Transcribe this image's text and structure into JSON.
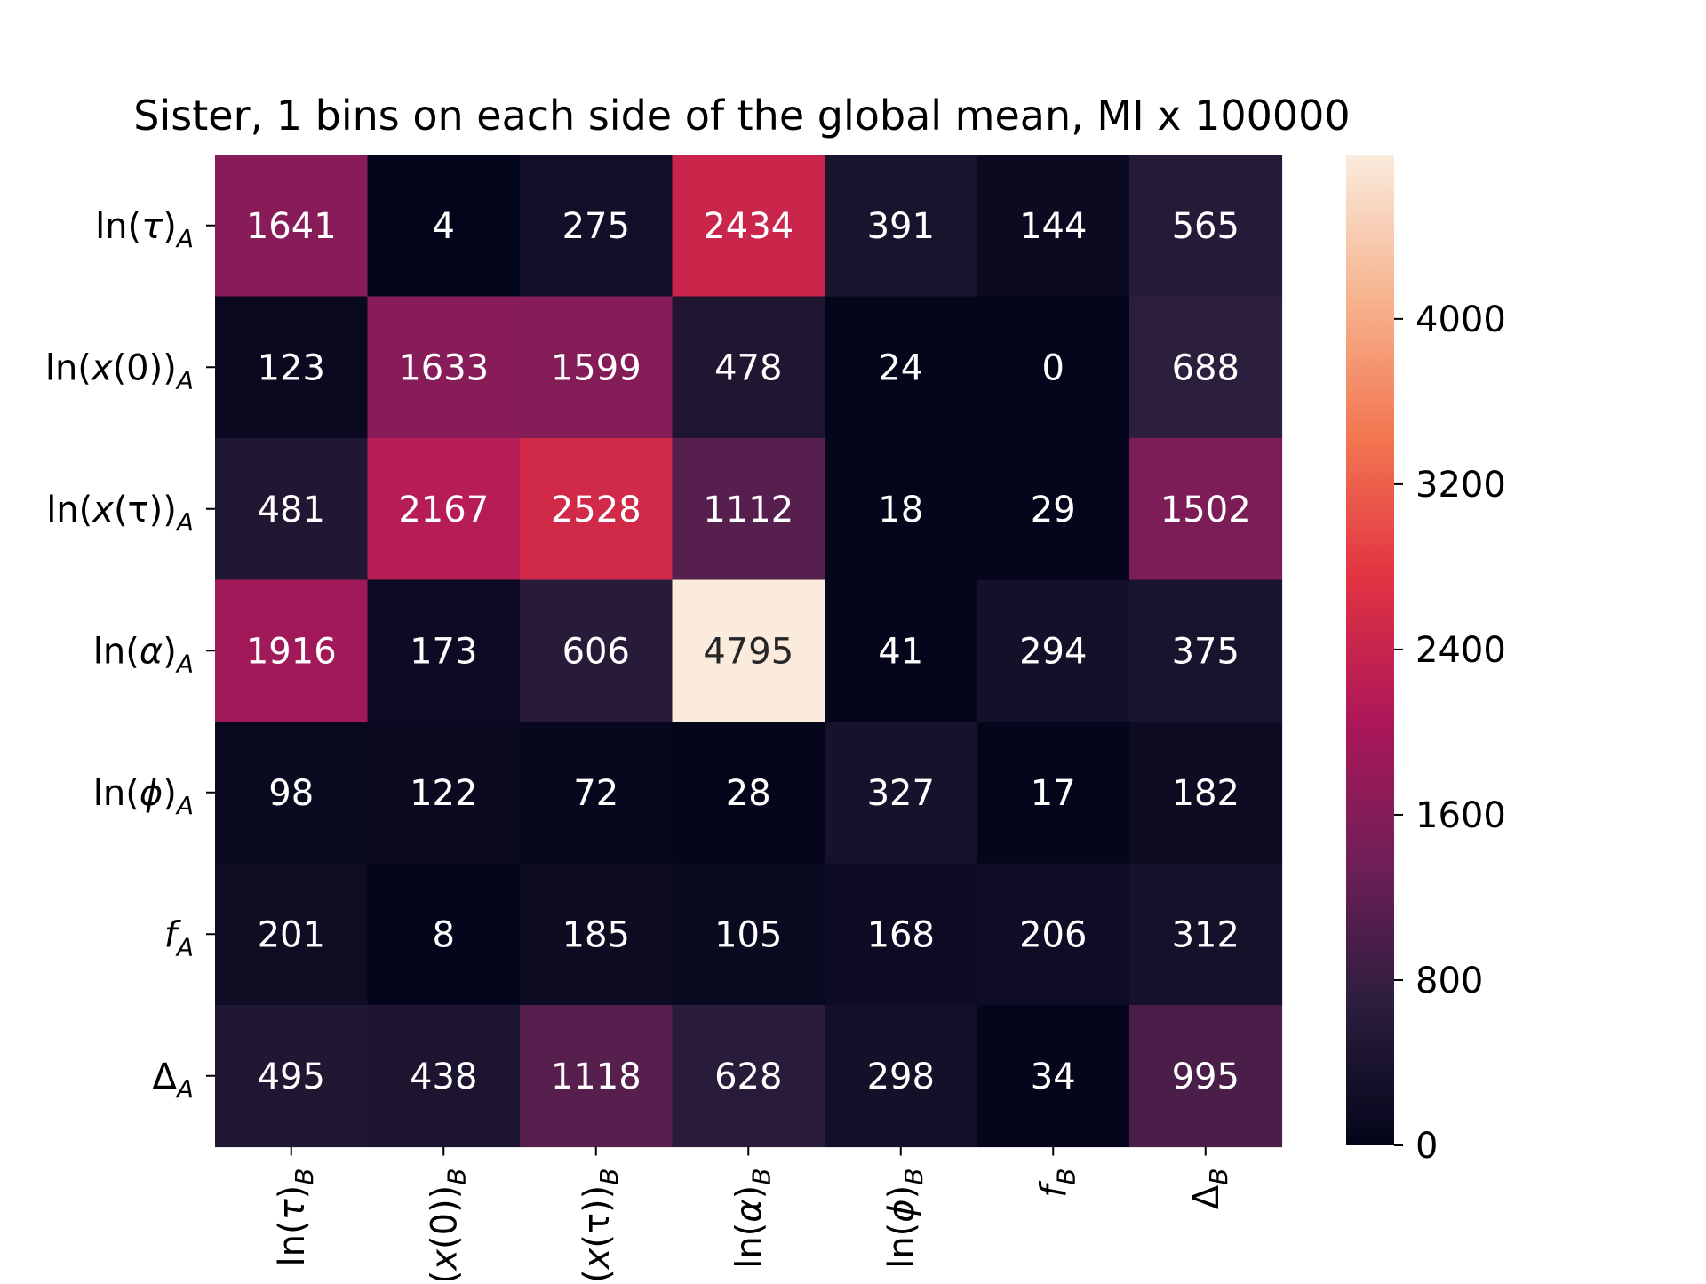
{
  "chart_data": {
    "type": "heatmap",
    "title": "Sister, 1 bins on each side of the global mean, MI x 100000",
    "row_labels": [
      {
        "base": "ln(",
        "sym": "τ",
        "close": ")",
        "sub": "A"
      },
      {
        "base": "ln(",
        "sym": "x",
        "close": "(0))",
        "sub": "A"
      },
      {
        "base": "ln(",
        "sym": "x",
        "close": "(τ))",
        "sub": "A"
      },
      {
        "base": "ln(",
        "sym": "α",
        "close": ")",
        "sub": "A"
      },
      {
        "base": "ln(",
        "sym": "ϕ",
        "close": ")",
        "sub": "A"
      },
      {
        "base": "",
        "sym": "f",
        "close": "",
        "sub": "A"
      },
      {
        "base": "Δ",
        "sym": "",
        "close": "",
        "sub": "A"
      }
    ],
    "col_labels": [
      {
        "base": "ln(",
        "sym": "τ",
        "close": ")",
        "sub": "B"
      },
      {
        "base": "ln(",
        "sym": "x",
        "close": "(0))",
        "sub": "B"
      },
      {
        "base": "ln(",
        "sym": "x",
        "close": "(τ))",
        "sub": "B"
      },
      {
        "base": "ln(",
        "sym": "α",
        "close": ")",
        "sub": "B"
      },
      {
        "base": "ln(",
        "sym": "ϕ",
        "close": ")",
        "sub": "B"
      },
      {
        "base": "",
        "sym": "f",
        "close": "",
        "sub": "B"
      },
      {
        "base": "Δ",
        "sym": "",
        "close": "",
        "sub": "B"
      }
    ],
    "values": [
      [
        1641,
        4,
        275,
        2434,
        391,
        144,
        565
      ],
      [
        123,
        1633,
        1599,
        478,
        24,
        0,
        688
      ],
      [
        481,
        2167,
        2528,
        1112,
        18,
        29,
        1502
      ],
      [
        1916,
        173,
        606,
        4795,
        41,
        294,
        375
      ],
      [
        98,
        122,
        72,
        28,
        327,
        17,
        182
      ],
      [
        201,
        8,
        185,
        105,
        168,
        206,
        312
      ],
      [
        495,
        438,
        1118,
        628,
        298,
        34,
        995
      ]
    ],
    "colorbar": {
      "min": 0,
      "max": 4795,
      "ticks": [
        0,
        800,
        1600,
        2400,
        3200,
        4000
      ],
      "colormap": "rocket",
      "colors": [
        "#03051a",
        "#2c1e3d",
        "#701f57",
        "#ad1759",
        "#e13342",
        "#f37651",
        "#f6b48f",
        "#faebdd"
      ]
    },
    "annotation_colors": {
      "light": "#ffffff",
      "dark": "#262626"
    },
    "grid": false
  }
}
